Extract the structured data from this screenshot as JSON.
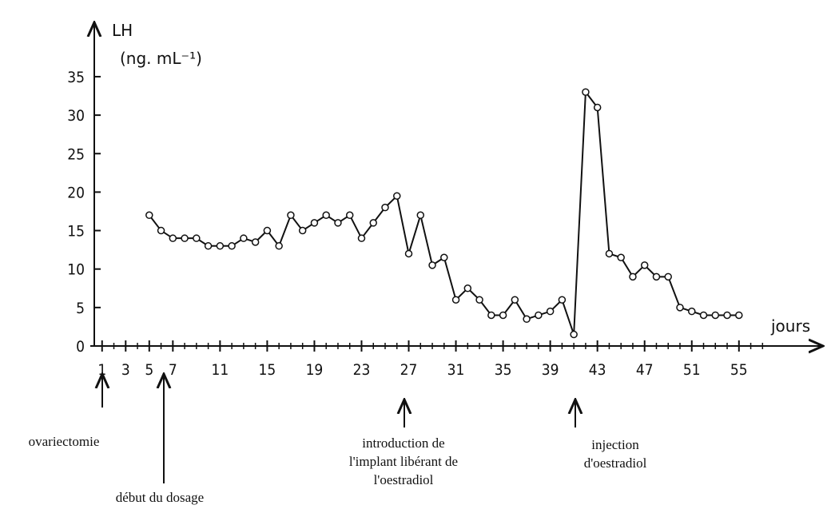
{
  "chart_data": {
    "type": "line",
    "y_label": "LH",
    "y_unit": "(ng. mL⁻¹)",
    "x_label": "jours",
    "x": [
      5,
      6,
      7,
      8,
      9,
      10,
      11,
      12,
      13,
      14,
      15,
      16,
      17,
      18,
      19,
      20,
      21,
      22,
      23,
      24,
      25,
      26,
      27,
      28,
      29,
      30,
      31,
      32,
      33,
      34,
      35,
      36,
      37,
      38,
      39,
      40,
      41,
      42,
      43,
      44,
      45,
      46,
      47,
      48,
      49,
      50,
      51,
      52,
      53,
      54,
      55
    ],
    "series": [
      {
        "color": "#111111",
        "values": [
          17,
          15,
          14,
          14,
          14,
          13,
          13,
          13,
          14,
          13.5,
          15,
          13,
          17,
          15,
          16,
          17,
          16,
          17,
          14,
          16,
          18,
          19.5,
          12,
          17,
          10.5,
          11.5,
          6,
          7.5,
          6,
          4,
          4,
          6,
          3.5,
          4,
          4.5,
          6,
          1.5,
          33,
          31,
          12,
          11.5,
          9,
          10.5,
          9,
          9,
          5,
          4.5,
          4,
          4,
          4,
          4
        ]
      }
    ],
    "xlim": [
      0,
      62
    ],
    "ylim": [
      0,
      40
    ],
    "xticks": [
      1,
      3,
      5,
      7,
      11,
      15,
      19,
      23,
      27,
      31,
      35,
      39,
      43,
      47,
      51,
      55
    ],
    "yticks": [
      0,
      5,
      10,
      15,
      20,
      25,
      30,
      35
    ],
    "annotations": [
      {
        "lines": [
          "ovariectomie"
        ]
      },
      {
        "lines": [
          "début du dosage"
        ]
      },
      {
        "lines": [
          "introduction de",
          "l'implant libérant de",
          "l'oestradiol"
        ]
      },
      {
        "lines": [
          "injection",
          "d'oestradiol"
        ]
      }
    ]
  }
}
